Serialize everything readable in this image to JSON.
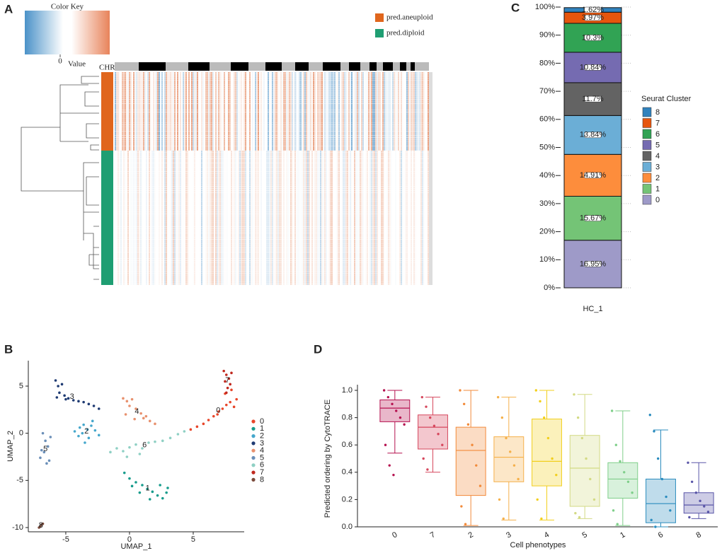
{
  "chart_data": [
    {
      "type": "heatmap",
      "panel": "A",
      "color_key_title": "Color Key",
      "color_key_label": "Value",
      "color_key_ticks": [
        0
      ],
      "annotation_label": "CHR",
      "groups": [
        {
          "name": "pred.aneuploid",
          "color": "#e0661d"
        },
        {
          "name": "pred.diploid",
          "color": "#1f9e72"
        }
      ]
    },
    {
      "type": "stacked_bar",
      "panel": "C",
      "categories": [
        "HC_1"
      ],
      "legend_title": "Seurat Cluster",
      "ylim": [
        0,
        100
      ],
      "yticks": [
        {
          "value": 0,
          "label": "0%"
        },
        {
          "value": 10,
          "label": "10%"
        },
        {
          "value": 20,
          "label": "20%"
        },
        {
          "value": 30,
          "label": "30%"
        },
        {
          "value": 40,
          "label": "40%"
        },
        {
          "value": 50,
          "label": "50%"
        },
        {
          "value": 60,
          "label": "60%"
        },
        {
          "value": 70,
          "label": "70%"
        },
        {
          "value": 80,
          "label": "80%"
        },
        {
          "value": 90,
          "label": "90%"
        },
        {
          "value": 100,
          "label": "100%"
        }
      ],
      "series": [
        {
          "name": "0",
          "color": "#9e9ac8",
          "values": [
            16.95
          ],
          "value_labels": [
            "16.95%"
          ]
        },
        {
          "name": "1",
          "color": "#74c476",
          "values": [
            15.67
          ],
          "value_labels": [
            "15.67%"
          ]
        },
        {
          "name": "2",
          "color": "#fd8d3c",
          "values": [
            14.91
          ],
          "value_labels": [
            "14.91%"
          ]
        },
        {
          "name": "3",
          "color": "#6baed6",
          "values": [
            13.84
          ],
          "value_labels": [
            "13.84%"
          ]
        },
        {
          "name": "4",
          "color": "#636363",
          "values": [
            11.7
          ],
          "value_labels": [
            "11.7%"
          ]
        },
        {
          "name": "5",
          "color": "#756bb1",
          "values": [
            10.84
          ],
          "value_labels": [
            "10.84%"
          ]
        },
        {
          "name": "6",
          "color": "#31a354",
          "values": [
            10.3
          ],
          "value_labels": [
            "10.3%"
          ]
        },
        {
          "name": "7",
          "color": "#e6550d",
          "values": [
            3.97
          ],
          "value_labels": [
            "3.97%"
          ]
        },
        {
          "name": "8",
          "color": "#3182bd",
          "values": [
            1.62
          ],
          "value_labels": [
            "1.62%"
          ]
        }
      ]
    },
    {
      "type": "scatter",
      "panel": "B",
      "x_label": "UMAP_1",
      "y_label": "UMAP_2",
      "xlim": [
        -7.94,
        9.0
      ],
      "ylim": [
        -10.45,
        7.7
      ],
      "xticks": [
        -5,
        0,
        5
      ],
      "yticks": [
        -10,
        -5,
        0,
        5
      ],
      "series": [
        {
          "name": "0",
          "color": "#e8462a",
          "x": [
            4.8,
            5.3,
            5.8,
            6.2,
            6.6,
            7.0,
            7.3,
            7.6,
            7.9,
            8.2,
            8.4,
            6.9,
            7.5,
            8.0
          ],
          "y": [
            0.4,
            0.7,
            1.0,
            1.4,
            1.8,
            2.3,
            2.6,
            3.0,
            3.3,
            2.8,
            3.6,
            2.0,
            4.2,
            4.6
          ]
        },
        {
          "name": "1",
          "color": "#179c8c",
          "x": [
            -0.4,
            0.0,
            0.5,
            1.0,
            1.4,
            1.8,
            2.2,
            2.6,
            3.0,
            2.4,
            1.6,
            0.8,
            0.2,
            2.9
          ],
          "y": [
            -4.2,
            -4.8,
            -5.2,
            -5.5,
            -5.9,
            -6.2,
            -6.6,
            -6.9,
            -5.8,
            -5.5,
            -7.0,
            -6.3,
            -5.6,
            -6.3
          ]
        },
        {
          "name": "2",
          "color": "#45a7cc",
          "x": [
            -4.3,
            -3.9,
            -3.6,
            -3.3,
            -3.0,
            -2.7,
            -3.2,
            -3.5,
            -2.9,
            -3.7,
            -2.4,
            -4.0
          ],
          "y": [
            0.2,
            0.6,
            0.9,
            0.4,
            0.8,
            0.3,
            -0.5,
            -1.0,
            1.3,
            0.0,
            -0.2,
            -0.3
          ]
        },
        {
          "name": "3",
          "color": "#1f3b73",
          "x": [
            -5.8,
            -5.6,
            -5.3,
            -5.5,
            -5.1,
            -4.8,
            -4.4,
            -4.0,
            -3.6,
            -3.2,
            -2.8,
            -2.4,
            -5.7,
            -5.0
          ],
          "y": [
            5.6,
            5.0,
            5.2,
            4.3,
            4.0,
            3.7,
            3.5,
            3.4,
            3.3,
            3.1,
            2.9,
            2.6,
            3.8,
            3.6
          ]
        },
        {
          "name": "4",
          "color": "#e8916e",
          "x": [
            -0.5,
            -0.2,
            0.2,
            0.5,
            0.9,
            1.3,
            1.6,
            2.0,
            0.0,
            0.4,
            -0.3,
            1.1
          ],
          "y": [
            3.7,
            3.4,
            3.6,
            2.6,
            2.1,
            1.8,
            1.3,
            1.0,
            2.9,
            1.5,
            2.0,
            1.6
          ]
        },
        {
          "name": "5",
          "color": "#6b8fb8",
          "x": [
            -6.8,
            -6.6,
            -6.4,
            -6.7,
            -7.0,
            -6.3,
            -6.5,
            -6.9,
            -6.2
          ],
          "y": [
            0.0,
            -0.8,
            -1.4,
            -2.0,
            -2.6,
            -2.9,
            -3.2,
            -1.8,
            -0.4
          ]
        },
        {
          "name": "6",
          "color": "#8fd0c4",
          "x": [
            -1.5,
            -1.0,
            -0.5,
            0.0,
            0.5,
            1.0,
            1.5,
            2.0,
            2.6,
            3.2,
            3.8,
            4.3,
            0.8,
            -0.2
          ],
          "y": [
            -2.0,
            -1.6,
            -1.9,
            -1.5,
            -1.2,
            -1.6,
            -1.0,
            -0.9,
            -0.8,
            -0.5,
            -0.1,
            0.2,
            -2.2,
            -2.5
          ]
        },
        {
          "name": "7",
          "color": "#c0281e",
          "x": [
            7.4,
            7.6,
            7.8,
            7.9,
            7.7,
            7.5,
            8.0,
            7.6
          ],
          "y": [
            6.6,
            6.2,
            5.8,
            5.2,
            4.8,
            5.5,
            6.4,
            4.3
          ]
        },
        {
          "name": "8",
          "color": "#7a4a3a",
          "x": [
            -7.1,
            -7.0,
            -6.9,
            -6.8
          ],
          "y": [
            -10.0,
            -9.9,
            -9.7,
            -9.6
          ]
        }
      ]
    },
    {
      "type": "box",
      "panel": "D",
      "x_label": "Cell phenotypes",
      "y_label": "Predicted ordering by CytoTRACE",
      "categories": [
        "0",
        "7",
        "2",
        "3",
        "4",
        "5",
        "1",
        "6",
        "8"
      ],
      "colors": [
        "#b5114f",
        "#d6475d",
        "#f28a3a",
        "#f5b04a",
        "#f2cf1d",
        "#d3da84",
        "#7fcf8a",
        "#2b8cbe",
        "#5a56a8"
      ],
      "ylim": [
        0,
        1.0
      ],
      "yticks": [
        {
          "value": 0,
          "label": "0.0"
        },
        0.2,
        0.4,
        0.6,
        0.8,
        {
          "value": 1,
          "label": "1.0"
        }
      ],
      "boxes": [
        {
          "min": 0.54,
          "q1": 0.77,
          "median": 0.87,
          "q3": 0.93,
          "max": 1.0
        },
        {
          "min": 0.4,
          "q1": 0.57,
          "median": 0.73,
          "q3": 0.82,
          "max": 0.95
        },
        {
          "min": 0.01,
          "q1": 0.23,
          "median": 0.56,
          "q3": 0.73,
          "max": 1.0
        },
        {
          "min": 0.05,
          "q1": 0.33,
          "median": 0.51,
          "q3": 0.66,
          "max": 0.95
        },
        {
          "min": 0.05,
          "q1": 0.3,
          "median": 0.48,
          "q3": 0.79,
          "max": 1.0
        },
        {
          "min": 0.06,
          "q1": 0.15,
          "median": 0.43,
          "q3": 0.67,
          "max": 0.97
        },
        {
          "min": 0.01,
          "q1": 0.21,
          "median": 0.35,
          "q3": 0.47,
          "max": 0.85
        },
        {
          "min": 0.0,
          "q1": 0.03,
          "median": 0.17,
          "q3": 0.35,
          "max": 0.71
        },
        {
          "min": 0.06,
          "q1": 0.1,
          "median": 0.16,
          "q3": 0.25,
          "max": 0.47
        }
      ],
      "points": [
        [
          1.0,
          0.95,
          0.9,
          0.85,
          0.8,
          0.75,
          0.6,
          0.45,
          0.38
        ],
        [
          0.95,
          0.88,
          0.8,
          0.74,
          0.68,
          0.6,
          0.5,
          0.42
        ],
        [
          1.0,
          0.9,
          0.75,
          0.6,
          0.45,
          0.3,
          0.15,
          0.02
        ],
        [
          0.95,
          0.8,
          0.65,
          0.55,
          0.45,
          0.35,
          0.2,
          0.06
        ],
        [
          1.0,
          0.92,
          0.8,
          0.65,
          0.5,
          0.38,
          0.2,
          0.06
        ],
        [
          0.97,
          0.8,
          0.65,
          0.5,
          0.35,
          0.2,
          0.1,
          0.07
        ],
        [
          0.85,
          0.6,
          0.48,
          0.4,
          0.33,
          0.25,
          0.12,
          0.02
        ],
        [
          0.82,
          0.7,
          0.5,
          0.35,
          0.22,
          0.12,
          0.05,
          0.0
        ],
        [
          0.47,
          0.33,
          0.25,
          0.19,
          0.15,
          0.11,
          0.07
        ]
      ]
    }
  ]
}
